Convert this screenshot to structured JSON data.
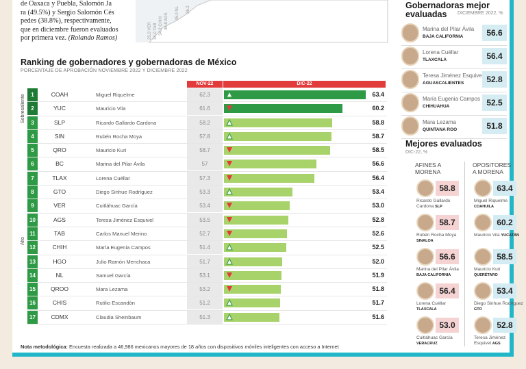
{
  "intro": {
    "lines": [
      "de Oaxaca y Puebla, Salomón Ja",
      "ra (49.5%) y Sergio Salomón Cés",
      "pedes (38.8%), respectivamente,",
      "que en diciembre fueron evaluados",
      "por primera vez. ",
      "(Rolando Ramos)"
    ]
  },
  "ranking": {
    "title": "Ranking de gobernadores y gobernadoras de México",
    "subtitle": "PORCENTAJE DE APROBACIÓN NOVIEMBRE 2022 Y DICIEMBRE 2022",
    "col_nov": "NOV-22",
    "col_dic": "DIC-22",
    "cat_top": "Sobresaliente",
    "cat_bottom": "Alto",
    "colors": {
      "dark_green": "#2f9a46",
      "light_green": "#a8d36b",
      "up": "#3aa04a",
      "down": "#e33b3b",
      "header": "#e13b3b"
    }
  },
  "chart_data": {
    "type": "bar",
    "title": "Ranking de gobernadores y gobernadoras de México",
    "series": [
      {
        "name": "NOV-22",
        "values": [
          62.3,
          61.6,
          58.2,
          57.8,
          58.7,
          57,
          57.3,
          53.3,
          53.4,
          53.5,
          52.7,
          51.4,
          51.7,
          53.1,
          53.2,
          51.2,
          51.3
        ]
      },
      {
        "name": "DIC-22",
        "values": [
          63.4,
          60.2,
          58.8,
          58.7,
          58.5,
          56.6,
          56.4,
          53.4,
          53.0,
          52.8,
          52.6,
          52.5,
          52.0,
          51.9,
          51.8,
          51.7,
          51.6
        ]
      }
    ],
    "rows": [
      {
        "rank": "1",
        "state": "COAH",
        "name": "Miguel Riquelme",
        "nov": "62.3",
        "dic": "63.4",
        "trend": "up",
        "tier": "top"
      },
      {
        "rank": "2",
        "state": "YUC",
        "name": "Mauricio Vila",
        "nov": "61.6",
        "dic": "60.2",
        "trend": "down",
        "tier": "top"
      },
      {
        "rank": "3",
        "state": "SLP",
        "name": "Ricardo Gallardo Cardona",
        "nov": "58.2",
        "dic": "58.8",
        "trend": "up",
        "tier": "high"
      },
      {
        "rank": "4",
        "state": "SIN",
        "name": "Rubén Rocha Moya",
        "nov": "57.8",
        "dic": "58.7",
        "trend": "up",
        "tier": "high"
      },
      {
        "rank": "5",
        "state": "QRO",
        "name": "Mauricio Kuri",
        "nov": "58.7",
        "dic": "58.5",
        "trend": "down",
        "tier": "high"
      },
      {
        "rank": "6",
        "state": "BC",
        "name": "Marina del Pilar Ávila",
        "nov": "57",
        "dic": "56.6",
        "trend": "down",
        "tier": "high"
      },
      {
        "rank": "7",
        "state": "TLAX",
        "name": "Lorena Cuéllar",
        "nov": "57.3",
        "dic": "56.4",
        "trend": "down",
        "tier": "high"
      },
      {
        "rank": "8",
        "state": "GTO",
        "name": "Diego Sinhue Rodríguez",
        "nov": "53.3",
        "dic": "53.4",
        "trend": "up",
        "tier": "high"
      },
      {
        "rank": "9",
        "state": "VER",
        "name": "Cuitláhuac García",
        "nov": "53.4",
        "dic": "53.0",
        "trend": "down",
        "tier": "high"
      },
      {
        "rank": "10",
        "state": "AGS",
        "name": "Teresa Jiménez Esquivel",
        "nov": "53.5",
        "dic": "52.8",
        "trend": "down",
        "tier": "high"
      },
      {
        "rank": "11",
        "state": "TAB",
        "name": "Carlos Manuel Merino",
        "nov": "52.7",
        "dic": "52.6",
        "trend": "down",
        "tier": "high"
      },
      {
        "rank": "12",
        "state": "CHIH",
        "name": "María Eugenia Campos",
        "nov": "51.4",
        "dic": "52.5",
        "trend": "up",
        "tier": "high"
      },
      {
        "rank": "13",
        "state": "HGO",
        "name": "Julio Ramón Menchaca",
        "nov": "51.7",
        "dic": "52.0",
        "trend": "up",
        "tier": "high"
      },
      {
        "rank": "14",
        "state": "NL",
        "name": "Samuel García",
        "nov": "53.1",
        "dic": "51.9",
        "trend": "down",
        "tier": "high"
      },
      {
        "rank": "15",
        "state": "QROO",
        "name": "Mara Lezama",
        "nov": "53.2",
        "dic": "51.8",
        "trend": "down",
        "tier": "high"
      },
      {
        "rank": "16",
        "state": "CHIS",
        "name": "Rutilio Escandón",
        "nov": "51.2",
        "dic": "51.7",
        "trend": "up",
        "tier": "high"
      },
      {
        "rank": "17",
        "state": "CDMX",
        "name": "Claudia Sheinbaum",
        "nov": "51.3",
        "dic": "51.6",
        "trend": "up",
        "tier": "high"
      }
    ]
  },
  "methodology": {
    "label": "Nota metodológica:",
    "text": " Encuesta realizada a 46,986  mexicanos mayores de 18 años con dispositivos móviles inteligentes con acceso a Internet"
  },
  "women": {
    "title_1": "Gobernadoras mejor",
    "title_2": "evaluadas",
    "subtitle": "DICIEMBRE 2022, %",
    "items": [
      {
        "name": "Marina del Pilar Ávila",
        "state": "BAJA CALIFORNIA",
        "value": "56.6"
      },
      {
        "name": "Lorena Cuéllar",
        "state": "TLAXCALA",
        "value": "56.4"
      },
      {
        "name": "Teresa Jiménez Esquivel",
        "state": "AGUASCALIENTES",
        "value": "52.8"
      },
      {
        "name": "María Eugenia Campos",
        "state": "CHIHUAHUA",
        "value": "52.5"
      },
      {
        "name": "Mara Lezama",
        "state": "QUINTANA ROO",
        "value": "51.8"
      }
    ]
  },
  "best": {
    "title": "Mejores evaluados",
    "subtitle": "DIC-22, %",
    "col_left_1": "AFINES A",
    "col_left_2": "MORENA",
    "col_right_1": "OPOSITORES",
    "col_right_2": "A MORENA",
    "left": [
      {
        "name": "Ricardo Gallardo Cardona",
        "state": "SLP",
        "value": "58.8"
      },
      {
        "name": "Rubén Rocha Moya",
        "state": "SINALOA",
        "value": "58.7"
      },
      {
        "name": "Marina del Pilar Ávila",
        "state": "BAJA CALIFORNIA",
        "value": "56.6"
      },
      {
        "name": "Lorena Cuéllar",
        "state": "TLAXCALA",
        "value": "56.4"
      },
      {
        "name": "Cuitláhuac García",
        "state": "VERACRUZ",
        "value": "53.0"
      }
    ],
    "right": [
      {
        "name": "Miguel Riquelme",
        "state": "COAHUILA",
        "value": "63.4"
      },
      {
        "name": "Mauricio Vila",
        "state": "YUCATÁN",
        "value": "60.2"
      },
      {
        "name": "Mauricio Kuri",
        "state": "QUERÉTARO",
        "value": "58.5"
      },
      {
        "name": "Diego Sinhue Rodríguez",
        "state": "GTO",
        "value": "53.4"
      },
      {
        "name": "Teresa Jiménez Esquivel",
        "state": "AGS",
        "value": "52.8"
      }
    ],
    "colors": {
      "left_bg": "#f6d3d3",
      "right_bg": "#d3ebf2"
    }
  },
  "tick_labels": [
    "25.0 VER",
    "34.0 TAB",
    "34.2 CHIH",
    "36.8 AGS",
    "45.0 NL",
    "36.2"
  ]
}
